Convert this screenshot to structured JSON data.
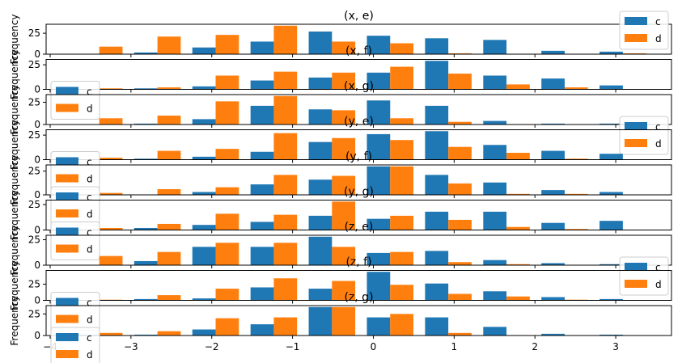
{
  "chart_data": {
    "type": "bar",
    "bins_start": -3.68,
    "bin_width": 0.72,
    "xlim": [
      -4.05,
      3.69
    ],
    "x_ticks": [
      -4,
      -3,
      -2,
      -1,
      0,
      1,
      2,
      3
    ],
    "y_ticks": [
      0,
      25
    ],
    "ylabel": "Frequency",
    "series_names": [
      "c",
      "d"
    ],
    "colors": {
      "c": "#1f77b4",
      "d": "#ff7f0e"
    },
    "subplots": [
      {
        "title": "(x, e)",
        "c": [
          0,
          2,
          8,
          15,
          27,
          22,
          19,
          17,
          4,
          3
        ],
        "d": [
          9,
          21,
          23,
          34,
          15,
          13,
          1,
          0,
          0,
          1
        ],
        "legend": "upper right"
      },
      {
        "title": "(x, f)",
        "c": [
          0,
          1,
          3,
          9,
          12,
          17,
          29,
          14,
          11,
          4
        ],
        "d": [
          1,
          2,
          14,
          18,
          17,
          23,
          16,
          5,
          2,
          0
        ],
        "legend": "lower left"
      },
      {
        "title": "(x, g)",
        "c": [
          0,
          1,
          6,
          21,
          17,
          27,
          21,
          4,
          1,
          1
        ],
        "d": [
          7,
          10,
          26,
          32,
          16,
          7,
          3,
          0,
          0,
          0
        ],
        "legend": "lower right"
      },
      {
        "title": "(y, e)",
        "c": [
          0,
          1,
          3,
          8,
          18,
          26,
          29,
          15,
          9,
          6
        ],
        "d": [
          2,
          9,
          11,
          27,
          22,
          20,
          13,
          7,
          1,
          0
        ],
        "legend": "lower left"
      },
      {
        "title": "(y, f)",
        "c": [
          0,
          0,
          3,
          11,
          16,
          30,
          21,
          13,
          5,
          3
        ],
        "d": [
          2,
          6,
          8,
          21,
          20,
          30,
          12,
          1,
          1,
          0
        ],
        "legend": "lower left"
      },
      {
        "title": "(y, g)",
        "c": [
          0,
          2,
          5,
          8,
          14,
          11,
          18,
          18,
          7,
          9
        ],
        "d": [
          2,
          6,
          16,
          15,
          28,
          14,
          10,
          3,
          1,
          0
        ],
        "legend": "lower left"
      },
      {
        "title": "(z, e)",
        "c": [
          0,
          4,
          18,
          18,
          28,
          12,
          14,
          5,
          2,
          1
        ],
        "d": [
          9,
          13,
          22,
          22,
          18,
          13,
          3,
          1,
          0,
          0
        ],
        "legend": "lower right"
      },
      {
        "title": "(z, f)",
        "c": [
          0,
          2,
          3,
          20,
          18,
          44,
          26,
          14,
          5,
          2
        ],
        "d": [
          1,
          8,
          18,
          34,
          30,
          24,
          10,
          6,
          1,
          0
        ],
        "legend": "lower left"
      },
      {
        "title": "(z, g)",
        "c": [
          1,
          1,
          7,
          13,
          33,
          21,
          21,
          10,
          2,
          1
        ],
        "d": [
          3,
          5,
          20,
          21,
          33,
          25,
          3,
          0,
          0,
          0
        ],
        "legend": "lower left"
      }
    ]
  }
}
